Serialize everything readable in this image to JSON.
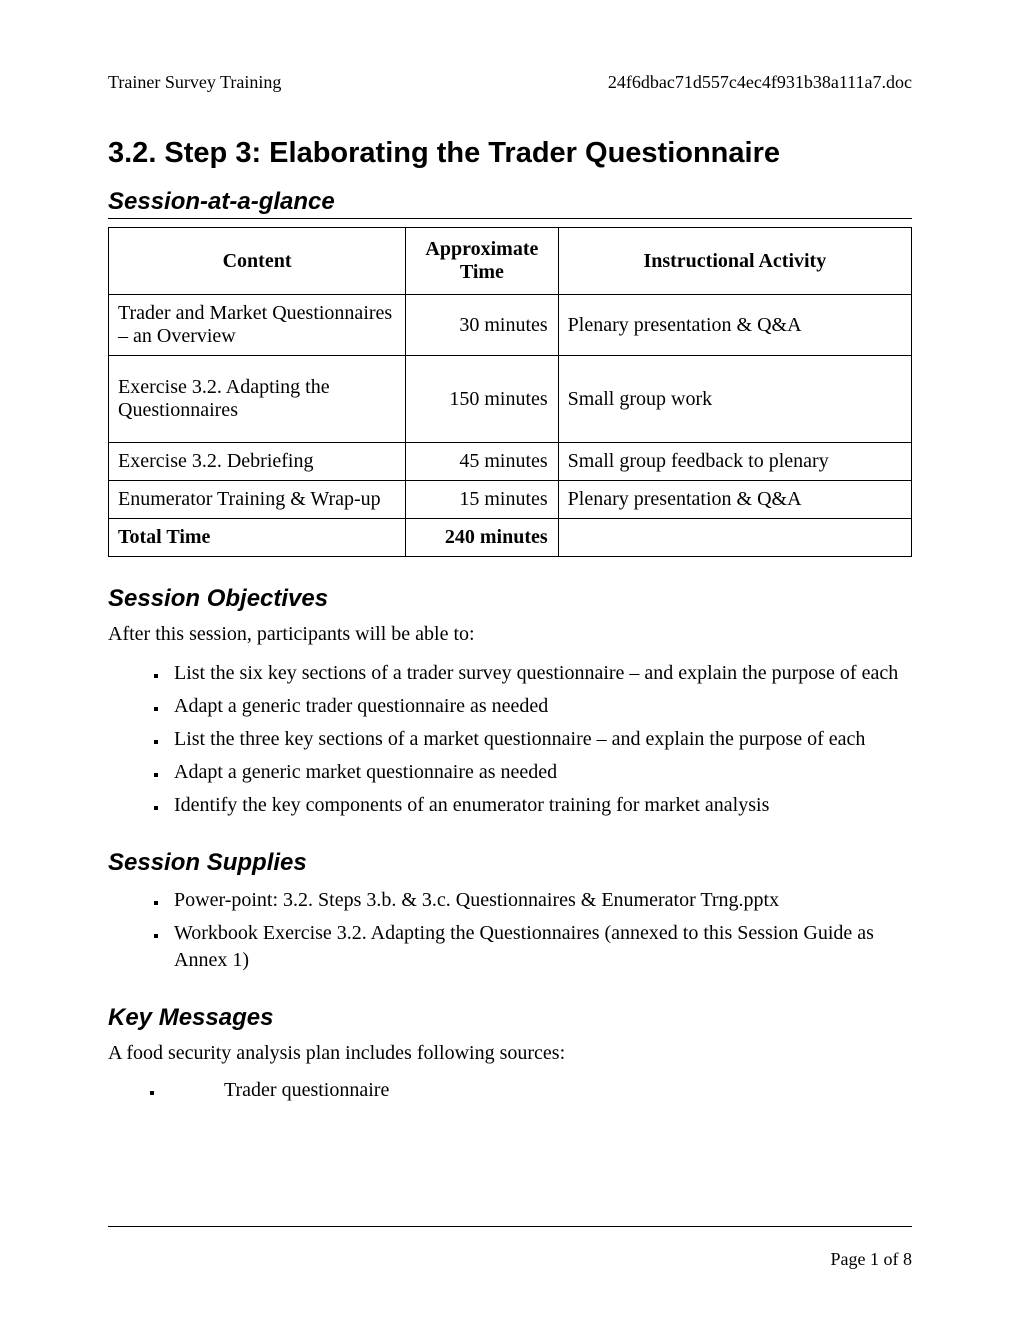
{
  "header": {
    "left": "Trainer Survey Training",
    "right": "24f6dbac71d557c4ec4f931b38a111a7.doc"
  },
  "title": "3.2. Step 3: Elaborating the Trader Questionnaire",
  "session_glance": {
    "heading": "Session-at-a-glance",
    "columns": [
      "Content",
      "Approximate Time",
      "Instructional Activity"
    ],
    "rows": [
      {
        "content": "Trader and Market Questionnaires – an Overview",
        "time": "30 minutes",
        "activity": "Plenary presentation & Q&A"
      },
      {
        "content": "Exercise 3.2.  Adapting the Questionnaires",
        "time": "150 minutes",
        "activity": "Small group work"
      },
      {
        "content": "Exercise 3.2. Debriefing",
        "time": "45 minutes",
        "activity": "Small group feedback to plenary"
      },
      {
        "content": "Enumerator Training & Wrap-up",
        "time": "15 minutes",
        "activity": "Plenary presentation & Q&A"
      }
    ],
    "total_label": "Total Time",
    "total_time": "240 minutes"
  },
  "objectives": {
    "heading": "Session Objectives",
    "intro": "After this session, participants will be able to:",
    "items": [
      "List the six key sections of a trader survey questionnaire – and explain the purpose of each",
      "Adapt a generic trader questionnaire as needed",
      "List the three key sections of a market questionnaire – and explain the purpose of each",
      "Adapt a generic market questionnaire as needed",
      "Identify the key components of an enumerator training for market analysis"
    ]
  },
  "supplies": {
    "heading": "Session Supplies",
    "items": [
      "Power-point:  3.2. Steps 3.b. & 3.c. Questionnaires & Enumerator Trng.pptx",
      "Workbook Exercise 3.2. Adapting the Questionnaires (annexed to this Session Guide as Annex 1)"
    ]
  },
  "key_messages": {
    "heading": "Key Messages",
    "intro": "A food security analysis plan includes following sources:",
    "items": [
      "Trader questionnaire"
    ]
  },
  "footer": {
    "page": "Page 1 of 8"
  }
}
